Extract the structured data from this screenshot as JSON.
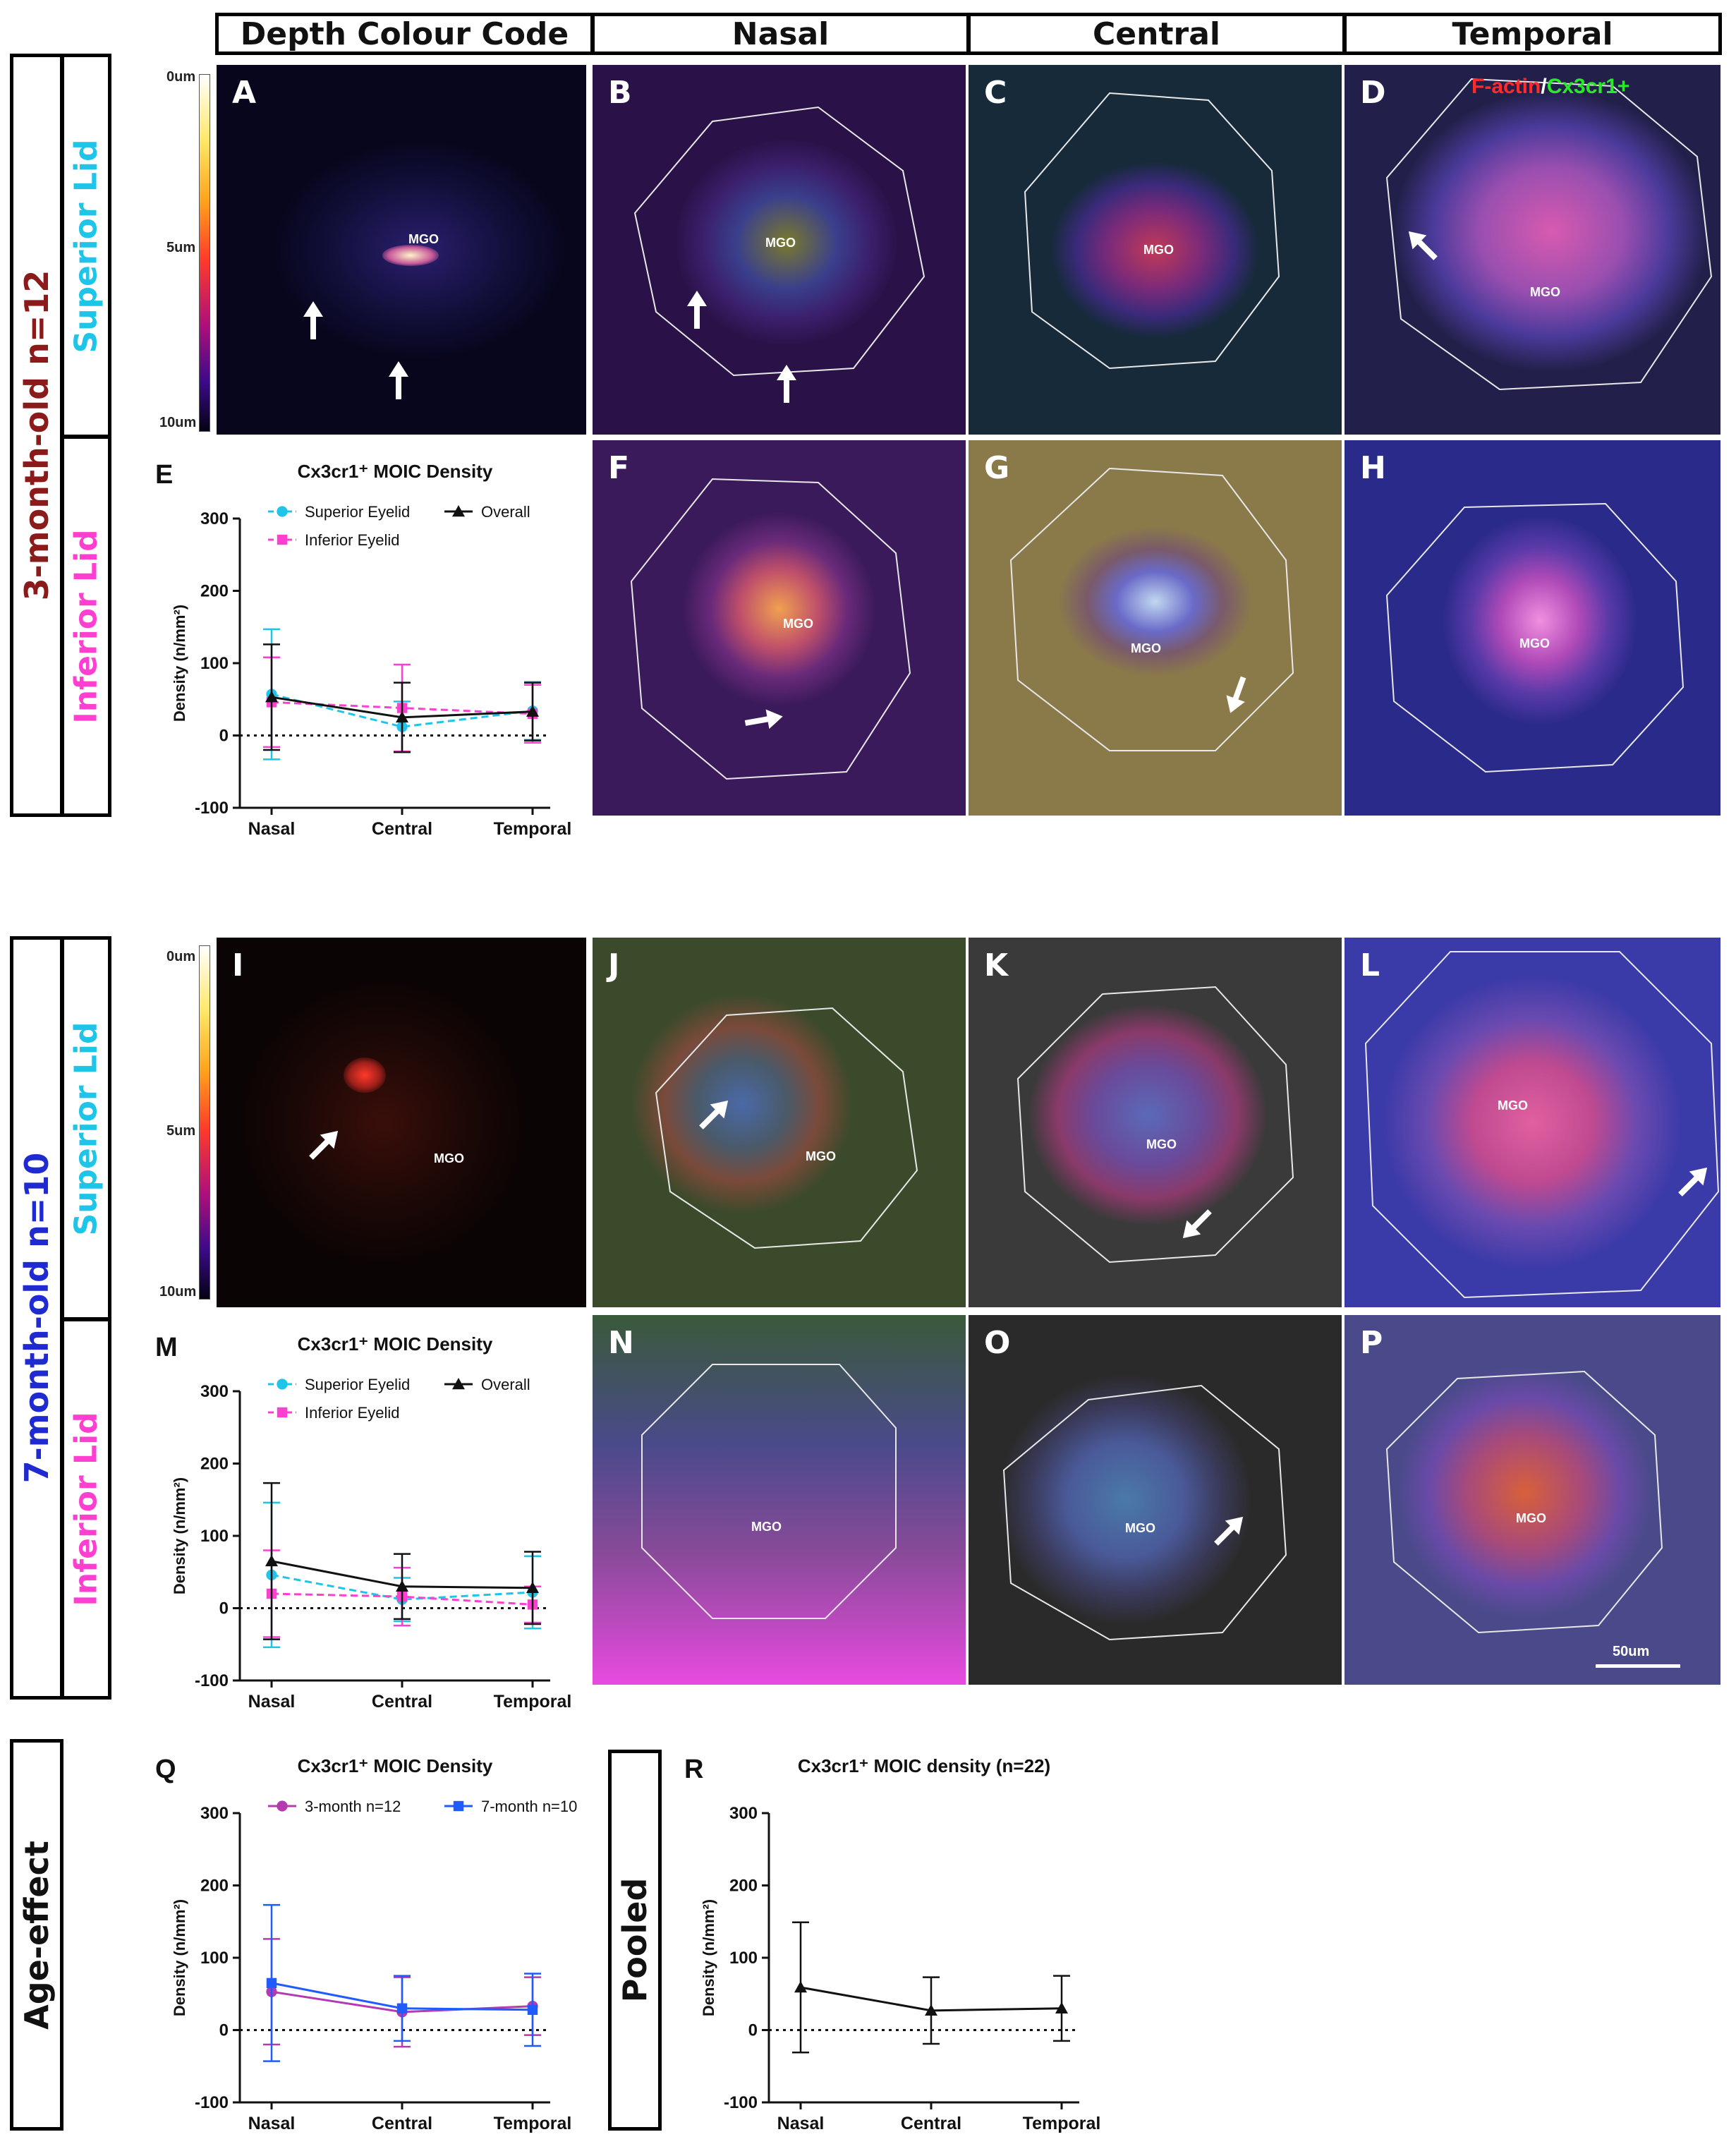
{
  "headers": [
    "Depth Colour Code",
    "Nasal",
    "Central",
    "Temporal"
  ],
  "groups": {
    "g3": {
      "title": "3-month-old n=12",
      "superior": "Superior Lid",
      "inferior": "Inferior Lid",
      "title_color": "#8b1a1a"
    },
    "g7": {
      "title": "7-month-old n=10",
      "superior": "Superior Lid",
      "inferior": "Inferior Lid",
      "title_color": "#1f2bd0"
    },
    "age": {
      "title": "Age-effect"
    },
    "pooled": {
      "title": "Pooled"
    }
  },
  "colors": {
    "superior": "#1ec5e8",
    "inferior": "#ff3fd0",
    "overall": "#111111",
    "m3": "#b33ab0",
    "m7": "#1f5bff"
  },
  "panels": {
    "A": {
      "label": "A",
      "mgo": "MGO"
    },
    "B": {
      "label": "B",
      "mgo": "MGO"
    },
    "C": {
      "label": "C",
      "mgo": "MGO"
    },
    "D": {
      "label": "D",
      "mgo": "MGO",
      "stain_red": "F-actin",
      "stain_sep": "/",
      "stain_green": "Cx3cr1+"
    },
    "F": {
      "label": "F",
      "mgo": "MGO"
    },
    "G": {
      "label": "G",
      "mgo": "MGO"
    },
    "H": {
      "label": "H",
      "mgo": "MGO"
    },
    "I": {
      "label": "I",
      "mgo": "MGO"
    },
    "J": {
      "label": "J",
      "mgo": "MGO"
    },
    "K": {
      "label": "K",
      "mgo": "MGO"
    },
    "L": {
      "label": "L",
      "mgo": "MGO"
    },
    "N": {
      "label": "N",
      "mgo": "MGO"
    },
    "O": {
      "label": "O",
      "mgo": "MGO"
    },
    "P": {
      "label": "P",
      "mgo": "MGO",
      "scalebar": "50um"
    }
  },
  "colorbar": {
    "top": "0um",
    "mid": "5um",
    "bottom": "10um"
  },
  "chart_data": [
    {
      "id": "E",
      "panel_label": "E",
      "type": "line",
      "title": "Cx3cr1⁺ MOIC Density",
      "ylabel": "Density (n/mm²)",
      "xlabel": "",
      "categories": [
        "Nasal",
        "Central",
        "Temporal"
      ],
      "ylim": [
        -100,
        300
      ],
      "yticks": [
        -100,
        0,
        100,
        200,
        300
      ],
      "legend": [
        "Superior Eyelid",
        "Overall",
        "Inferior Eyelid"
      ],
      "series": [
        {
          "name": "Superior Eyelid",
          "style": "superior",
          "values": [
            57,
            12,
            34
          ],
          "err": [
            90,
            35,
            40
          ]
        },
        {
          "name": "Inferior Eyelid",
          "style": "inferior",
          "values": [
            46,
            38,
            30
          ],
          "err": [
            62,
            60,
            40
          ]
        },
        {
          "name": "Overall",
          "style": "overall",
          "values": [
            53,
            25,
            33
          ],
          "err": [
            73,
            48,
            40
          ]
        }
      ]
    },
    {
      "id": "M",
      "panel_label": "M",
      "type": "line",
      "title": "Cx3cr1⁺ MOIC Density",
      "ylabel": "Density (n/mm²)",
      "xlabel": "",
      "categories": [
        "Nasal",
        "Central",
        "Temporal"
      ],
      "ylim": [
        -100,
        300
      ],
      "yticks": [
        -100,
        0,
        100,
        200,
        300
      ],
      "legend": [
        "Superior Eyelid",
        "Overall",
        "Inferior Eyelid"
      ],
      "series": [
        {
          "name": "Superior Eyelid",
          "style": "superior",
          "values": [
            46,
            12,
            22
          ],
          "err": [
            100,
            30,
            50
          ]
        },
        {
          "name": "Inferior Eyelid",
          "style": "inferior",
          "values": [
            20,
            16,
            5
          ],
          "err": [
            60,
            40,
            25
          ]
        },
        {
          "name": "Overall",
          "style": "overall",
          "values": [
            65,
            30,
            28
          ],
          "err": [
            108,
            45,
            50
          ]
        }
      ]
    },
    {
      "id": "Q",
      "panel_label": "Q",
      "type": "line",
      "title": "Cx3cr1⁺ MOIC Density",
      "ylabel": "Density (n/mm²)",
      "xlabel": "",
      "categories": [
        "Nasal",
        "Central",
        "Temporal"
      ],
      "ylim": [
        -100,
        300
      ],
      "yticks": [
        -100,
        0,
        100,
        200,
        300
      ],
      "legend": [
        "3-month n=12",
        "7-month n=10"
      ],
      "series": [
        {
          "name": "3-month n=12",
          "style": "m3",
          "values": [
            53,
            25,
            33
          ],
          "err": [
            73,
            48,
            40
          ]
        },
        {
          "name": "7-month n=10",
          "style": "m7",
          "values": [
            65,
            30,
            28
          ],
          "err": [
            108,
            45,
            50
          ]
        }
      ]
    },
    {
      "id": "R",
      "panel_label": "R",
      "type": "line",
      "title": "Cx3cr1⁺ MOIC density (n=22)",
      "ylabel": "Density (n/mm²)",
      "xlabel": "",
      "categories": [
        "Nasal",
        "Central",
        "Temporal"
      ],
      "ylim": [
        -100,
        300
      ],
      "yticks": [
        -100,
        0,
        100,
        200,
        300
      ],
      "legend": [],
      "series": [
        {
          "name": "",
          "style": "overall",
          "values": [
            59,
            27,
            30
          ],
          "err": [
            90,
            46,
            45
          ]
        }
      ]
    }
  ]
}
